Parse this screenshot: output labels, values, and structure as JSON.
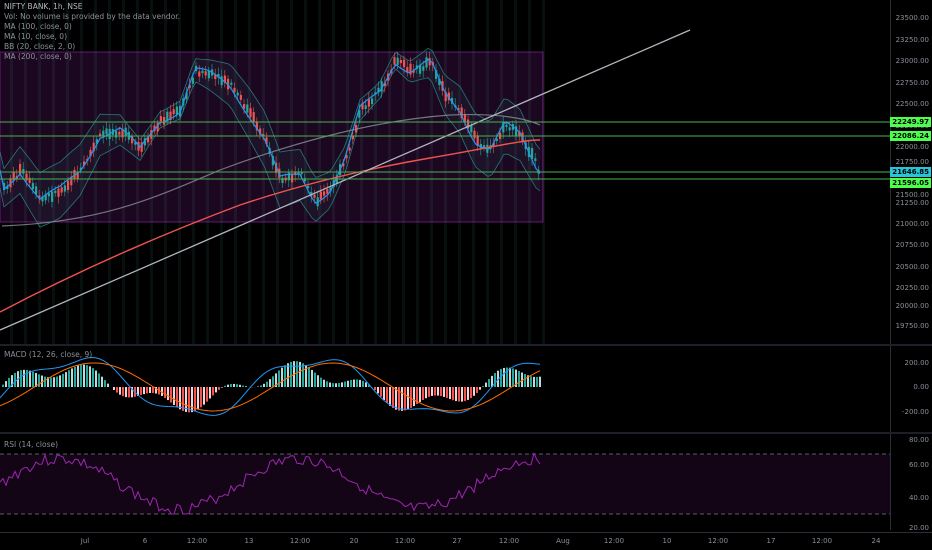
{
  "main": {
    "symbol_line": "NIFTY BANK, 1h, NSE",
    "indicators": [
      "Vol: No volume is provided by the data vendor.",
      "MA (100, close, 0)",
      "MA (10, close, 0)",
      "BB (20, close, 2, 0)",
      "MA (200, close, 0)"
    ],
    "y_ticks": [
      "23500.00",
      "23250.00",
      "23000.00",
      "22750.00",
      "22500.00",
      "22250.00",
      "22000.00",
      "21750.00",
      "21500.00",
      "21250.00",
      "21000.00",
      "20750.00",
      "20500.00",
      "20250.00",
      "20000.00",
      "19750.00"
    ],
    "price_tags": [
      {
        "label": "22249.97",
        "color": "#4cff4c"
      },
      {
        "label": "22086.24",
        "color": "#4cff4c"
      },
      {
        "label": "21646.85",
        "color": "#26c6da"
      },
      {
        "label": "21596.05",
        "color": "#4cff4c"
      }
    ]
  },
  "macd": {
    "label": "MACD (12, 26, close, 9)",
    "y_ticks": [
      "200.00",
      "0.00",
      "-200.00"
    ]
  },
  "rsi": {
    "label": "RSI (14, close)",
    "y_ticks": [
      "80.00",
      "60.00",
      "40.00",
      "20.00"
    ]
  },
  "time_axis": [
    "Jul",
    "6",
    "12:00",
    "13",
    "12:00",
    "20",
    "12:00",
    "27",
    "12:00",
    "Aug",
    "12:00",
    "10",
    "12:00",
    "17",
    "12:00",
    "24"
  ],
  "colors": {
    "up": "#26a69a",
    "down": "#ef5350",
    "ma10": "#2196f3",
    "ma100": "#ef5350",
    "ma200": "#8a8f98",
    "bb": "#26a69a",
    "trendline": "#b2b5be",
    "hline": "#4caf50",
    "rsi": "#9c27b0",
    "box": "#9c27b0"
  }
}
